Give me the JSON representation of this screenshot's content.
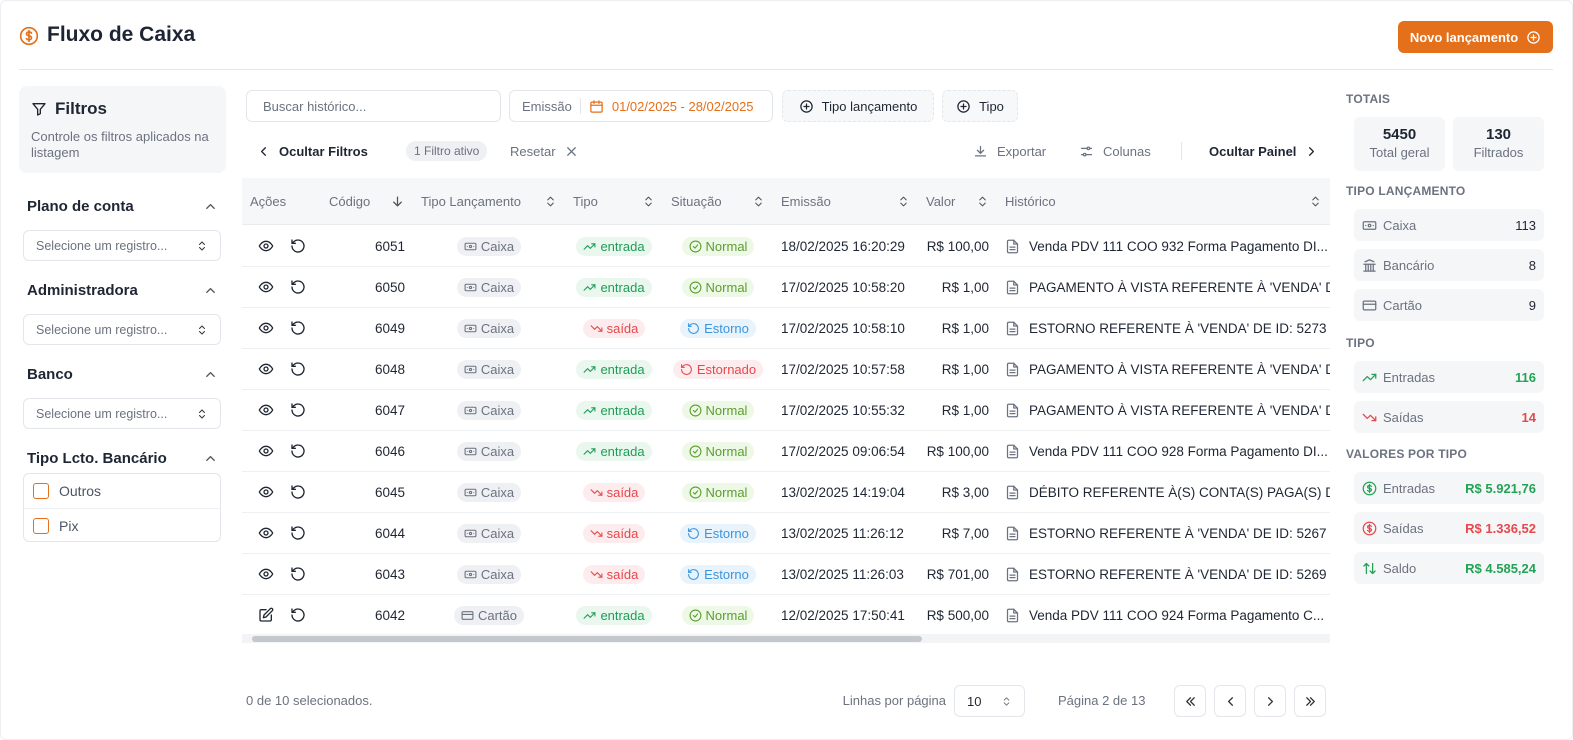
{
  "header": {
    "title": "Fluxo de Caixa",
    "new_button": "Novo lançamento"
  },
  "filters": {
    "title": "Filtros",
    "description": "Controle os filtros aplicados na listagem",
    "groups": [
      {
        "label": "Plano de conta",
        "placeholder": "Selecione um registro..."
      },
      {
        "label": "Administradora",
        "placeholder": "Selecione um registro..."
      },
      {
        "label": "Banco",
        "placeholder": "Selecione um registro..."
      },
      {
        "label": "Tipo Lcto. Bancário",
        "options": [
          "Outros",
          "Pix"
        ]
      }
    ]
  },
  "toolbar": {
    "search_placeholder": "Buscar histórico...",
    "emission_label": "Emissão",
    "date_range": "01/02/2025 - 28/02/2025",
    "type_entry": "Tipo lançamento",
    "type": "Tipo",
    "hide_filters": "Ocultar Filtros",
    "active_filters": "1 Filtro ativo",
    "reset": "Resetar",
    "export": "Exportar",
    "columns": "Colunas",
    "hide_panel": "Ocultar Painel"
  },
  "table": {
    "columns": [
      "Ações",
      "Código",
      "Tipo Lançamento",
      "Tipo",
      "Situação",
      "Emissão",
      "Valor",
      "Histórico"
    ],
    "badge_colors": {
      "tipo": {
        "entrada": [
          "#1f9d55",
          "#e9f7ef"
        ],
        "saída": [
          "#e5484d",
          "#fdeced"
        ]
      },
      "situacao": {
        "Normal": [
          "#5a9e2f",
          "#eef8e6"
        ],
        "Estorno": [
          "#3b94dc",
          "#e8f3fc"
        ],
        "Estornado": [
          "#e5484d",
          "#fdeced"
        ]
      }
    },
    "rows": [
      [
        6051,
        "Caixa",
        "entrada",
        "Normal",
        "18/02/2025 16:20:29",
        "R$ 100,00",
        "Venda PDV 111 COO 932 Forma Pagamento DI..."
      ],
      [
        6050,
        "Caixa",
        "entrada",
        "Normal",
        "17/02/2025 10:58:20",
        "R$ 1,00",
        "PAGAMENTO À VISTA REFERENTE À 'VENDA' DE I..."
      ],
      [
        6049,
        "Caixa",
        "saída",
        "Estorno",
        "17/02/2025 10:58:10",
        "R$ 1,00",
        "ESTORNO REFERENTE À 'VENDA' DE ID: 5273"
      ],
      [
        6048,
        "Caixa",
        "entrada",
        "Estornado",
        "17/02/2025 10:57:58",
        "R$ 1,00",
        "PAGAMENTO À VISTA REFERENTE À 'VENDA' DE I..."
      ],
      [
        6047,
        "Caixa",
        "entrada",
        "Normal",
        "17/02/2025 10:55:32",
        "R$ 1,00",
        "PAGAMENTO À VISTA REFERENTE À 'VENDA' DE I..."
      ],
      [
        6046,
        "Caixa",
        "entrada",
        "Normal",
        "17/02/2025 09:06:54",
        "R$ 100,00",
        "Venda PDV 111 COO 928 Forma Pagamento DI..."
      ],
      [
        6045,
        "Caixa",
        "saída",
        "Normal",
        "13/02/2025 14:19:04",
        "R$ 3,00",
        "DÉBITO REFERENTE À(S) CONTA(S) PAGA(S) DE..."
      ],
      [
        6044,
        "Caixa",
        "saída",
        "Estorno",
        "13/02/2025 11:26:12",
        "R$ 7,00",
        "ESTORNO REFERENTE À 'VENDA' DE ID: 5267"
      ],
      [
        6043,
        "Caixa",
        "saída",
        "Estorno",
        "13/02/2025 11:26:03",
        "R$ 701,00",
        "ESTORNO REFERENTE À 'VENDA' DE ID: 5269"
      ],
      [
        6042,
        "Cartão",
        "entrada",
        "Normal",
        "12/02/2025 17:50:41",
        "R$ 500,00",
        "Venda PDV 111 COO 924 Forma Pagamento C..."
      ]
    ]
  },
  "footer": {
    "selected": "0 de 10 selecionados.",
    "rows_per_page_label": "Linhas por página",
    "rows_per_page": 10,
    "page": "Página 2 de 13"
  },
  "totals": {
    "title": "TOTAIS",
    "cards": [
      {
        "value": 5450,
        "label": "Total geral"
      },
      {
        "value": 130,
        "label": "Filtrados"
      }
    ],
    "sections": [
      {
        "title": "TIPO LANÇAMENTO",
        "items": [
          {
            "label": "Caixa",
            "value": 113
          },
          {
            "label": "Bancário",
            "value": 8
          },
          {
            "label": "Cartão",
            "value": 9
          }
        ]
      },
      {
        "title": "TIPO",
        "items": [
          {
            "label": "Entradas",
            "value": 116,
            "color": "#22a355"
          },
          {
            "label": "Saídas",
            "value": 14,
            "color": "#e5484d"
          }
        ]
      },
      {
        "title": "VALORES POR TIPO",
        "items": [
          {
            "label": "Entradas",
            "value": "R$ 5.921,76",
            "color": "#22a355"
          },
          {
            "label": "Saídas",
            "value": "R$ 1.336,52",
            "color": "#e5484d"
          },
          {
            "label": "Saldo",
            "value": "R$ 4.585,24",
            "color": "#22a355"
          }
        ]
      }
    ]
  }
}
